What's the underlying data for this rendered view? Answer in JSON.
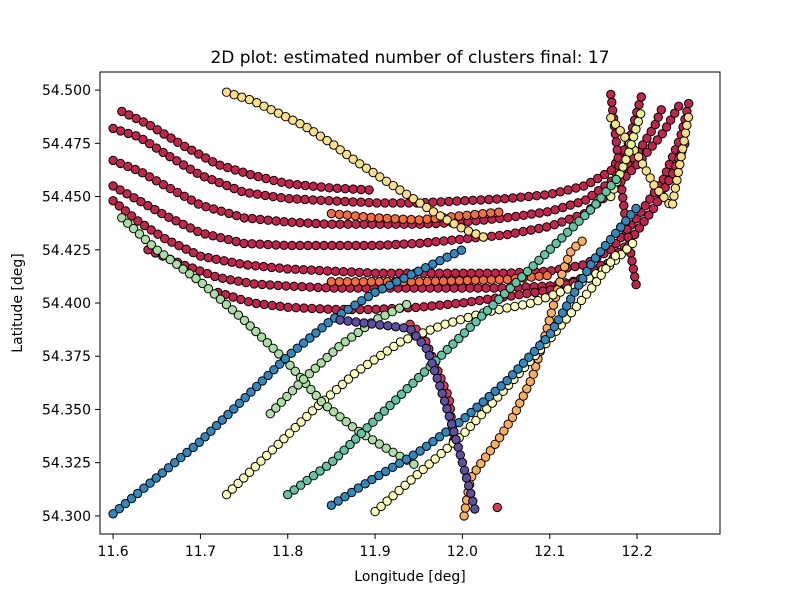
{
  "chart_data": {
    "type": "scatter",
    "title": "2D plot: estimated number of clusters final: 17",
    "xlabel": "Longitude [deg]",
    "ylabel": "Latitude [deg]",
    "xlim": [
      11.585,
      12.295
    ],
    "ylim": [
      54.2915,
      54.5085
    ],
    "xticks": [
      11.6,
      11.7,
      11.8,
      11.9,
      12.0,
      12.1,
      12.2
    ],
    "xtick_labels": [
      "11.6",
      "11.7",
      "11.8",
      "11.9",
      "12.0",
      "12.1",
      "12.2"
    ],
    "yticks": [
      54.3,
      54.325,
      54.35,
      54.375,
      54.4,
      54.425,
      54.45,
      54.475,
      54.5
    ],
    "ytick_labels": [
      "54.300",
      "54.325",
      "54.350",
      "54.375",
      "54.400",
      "54.425",
      "54.450",
      "54.475",
      "54.500"
    ],
    "grid": false,
    "legend": false,
    "marker": "circle",
    "edge_color": "#000000",
    "clusters": [
      {
        "color": "#c0264b",
        "paths": [
          [
            [
              11.6,
              54.482
            ],
            [
              11.63,
              54.478
            ],
            [
              11.66,
              54.47
            ],
            [
              11.7,
              54.46
            ],
            [
              11.75,
              54.452
            ],
            [
              11.8,
              54.449
            ],
            [
              11.85,
              54.448
            ],
            [
              11.9,
              54.447
            ],
            [
              11.95,
              54.447
            ],
            [
              12.0,
              54.448
            ],
            [
              12.05,
              54.449
            ],
            [
              12.1,
              54.451
            ],
            [
              12.14,
              54.455
            ],
            [
              12.17,
              54.462
            ],
            [
              12.19,
              54.475
            ],
            [
              12.2,
              54.49
            ],
            [
              12.205,
              54.497
            ]
          ],
          [
            [
              11.6,
              54.467
            ],
            [
              11.63,
              54.462
            ],
            [
              11.66,
              54.455
            ],
            [
              11.7,
              54.446
            ],
            [
              11.75,
              54.44
            ],
            [
              11.8,
              54.438
            ],
            [
              11.85,
              54.437
            ],
            [
              11.9,
              54.437
            ],
            [
              11.95,
              54.437
            ],
            [
              12.0,
              54.438
            ],
            [
              12.05,
              54.44
            ],
            [
              12.1,
              54.443
            ],
            [
              12.14,
              54.448
            ],
            [
              12.17,
              54.457
            ],
            [
              12.2,
              54.47
            ],
            [
              12.22,
              54.483
            ],
            [
              12.23,
              54.493
            ]
          ],
          [
            [
              11.6,
              54.455
            ],
            [
              11.63,
              54.448
            ],
            [
              11.66,
              54.441
            ],
            [
              11.7,
              54.433
            ],
            [
              11.75,
              54.428
            ],
            [
              11.8,
              54.427
            ],
            [
              11.85,
              54.427
            ],
            [
              11.9,
              54.427
            ],
            [
              11.95,
              54.428
            ],
            [
              12.0,
              54.43
            ],
            [
              12.05,
              54.432
            ],
            [
              12.1,
              54.436
            ],
            [
              12.14,
              54.442
            ],
            [
              12.17,
              54.452
            ],
            [
              12.2,
              54.465
            ],
            [
              12.23,
              54.48
            ],
            [
              12.25,
              54.494
            ]
          ],
          [
            [
              11.6,
              54.448
            ],
            [
              11.63,
              54.438
            ],
            [
              11.66,
              54.43
            ],
            [
              11.7,
              54.422
            ],
            [
              11.75,
              54.418
            ],
            [
              11.8,
              54.416
            ],
            [
              11.85,
              54.415
            ],
            [
              11.9,
              54.414
            ],
            [
              11.95,
              54.414
            ],
            [
              12.0,
              54.414
            ],
            [
              12.05,
              54.414
            ],
            [
              12.1,
              54.415
            ],
            [
              12.14,
              54.418
            ],
            [
              12.17,
              54.425
            ],
            [
              12.2,
              54.44
            ],
            [
              12.23,
              54.458
            ],
            [
              12.25,
              54.478
            ],
            [
              12.26,
              54.495
            ]
          ],
          [
            [
              11.64,
              54.425
            ],
            [
              11.68,
              54.418
            ],
            [
              11.72,
              54.412
            ],
            [
              11.76,
              54.409
            ],
            [
              11.8,
              54.408
            ],
            [
              11.85,
              54.407
            ],
            [
              11.9,
              54.407
            ],
            [
              11.95,
              54.407
            ],
            [
              12.0,
              54.407
            ],
            [
              12.05,
              54.407
            ],
            [
              12.1,
              54.408
            ],
            [
              12.15,
              54.412
            ],
            [
              12.19,
              54.428
            ],
            [
              12.22,
              54.445
            ],
            [
              12.24,
              54.46
            ],
            [
              12.255,
              54.475
            ]
          ],
          [
            [
              11.72,
              54.405
            ],
            [
              11.76,
              54.4
            ],
            [
              11.8,
              54.398
            ],
            [
              11.85,
              54.397
            ],
            [
              11.9,
              54.397
            ],
            [
              11.95,
              54.398
            ],
            [
              12.0,
              54.4
            ],
            [
              12.05,
              54.403
            ],
            [
              12.1,
              54.406
            ],
            [
              12.13,
              54.41
            ],
            [
              12.16,
              54.418
            ]
          ],
          [
            [
              12.17,
              54.498
            ],
            [
              12.175,
              54.48
            ],
            [
              12.18,
              54.462
            ],
            [
              12.185,
              54.445
            ],
            [
              12.19,
              54.43
            ],
            [
              12.195,
              54.418
            ],
            [
              12.2,
              54.406
            ]
          ],
          [
            [
              11.61,
              54.49
            ],
            [
              11.64,
              54.484
            ],
            [
              11.68,
              54.474
            ],
            [
              11.72,
              54.465
            ],
            [
              11.76,
              54.46
            ],
            [
              11.8,
              54.456
            ],
            [
              11.85,
              54.454
            ],
            [
              11.9,
              54.453
            ]
          ]
        ]
      },
      {
        "color": "#d53e4f",
        "paths": [
          [
            [
              11.94,
              54.39
            ],
            [
              11.955,
              54.385
            ],
            [
              11.97,
              54.37
            ],
            [
              11.985,
              54.355
            ],
            [
              11.99,
              54.335
            ]
          ],
          [
            [
              12.04,
              54.304
            ]
          ]
        ]
      },
      {
        "color": "#f46d43",
        "paths": [
          [
            [
              11.85,
              54.442
            ],
            [
              11.9,
              54.44
            ],
            [
              11.95,
              54.439
            ],
            [
              12.0,
              54.441
            ],
            [
              12.05,
              54.443
            ]
          ],
          [
            [
              11.85,
              54.41
            ],
            [
              11.95,
              54.41
            ],
            [
              12.05,
              54.411
            ],
            [
              12.1,
              54.413
            ]
          ]
        ]
      },
      {
        "color": "#fdae61",
        "paths": [
          [
            [
              12.002,
              54.3
            ],
            [
              12.006,
              54.31
            ],
            [
              12.01,
              54.318
            ],
            [
              12.02,
              54.324
            ],
            [
              12.04,
              54.335
            ],
            [
              12.06,
              54.348
            ],
            [
              12.08,
              54.365
            ],
            [
              12.095,
              54.385
            ],
            [
              12.105,
              54.4
            ],
            [
              12.115,
              54.415
            ],
            [
              12.125,
              54.425
            ],
            [
              12.14,
              54.43
            ]
          ]
        ]
      },
      {
        "color": "#fee08b",
        "paths": [
          [
            [
              11.73,
              54.499
            ],
            [
              11.76,
              54.495
            ],
            [
              11.79,
              54.489
            ],
            [
              11.82,
              54.483
            ],
            [
              11.85,
              54.475
            ],
            [
              11.88,
              54.466
            ],
            [
              11.91,
              54.458
            ],
            [
              11.94,
              54.45
            ],
            [
              11.97,
              54.442
            ],
            [
              12.0,
              54.435
            ],
            [
              12.03,
              54.43
            ]
          ],
          [
            [
              12.17,
              54.487
            ],
            [
              12.2,
              54.47
            ],
            [
              12.22,
              54.455
            ],
            [
              12.24,
              54.445
            ],
            [
              12.26,
              54.49
            ]
          ]
        ]
      },
      {
        "color": "#ffffbf",
        "paths": [
          [
            [
              11.73,
              54.31
            ],
            [
              11.78,
              54.33
            ],
            [
              11.83,
              54.35
            ],
            [
              11.88,
              54.368
            ],
            [
              11.93,
              54.382
            ],
            [
              11.98,
              54.39
            ],
            [
              12.03,
              54.396
            ],
            [
              12.08,
              54.4
            ],
            [
              12.13,
              54.408
            ],
            [
              12.17,
              54.418
            ],
            [
              12.2,
              54.43
            ]
          ],
          [
            [
              11.9,
              54.302
            ],
            [
              11.95,
              54.32
            ],
            [
              12.0,
              54.338
            ],
            [
              12.05,
              54.36
            ],
            [
              12.1,
              54.383
            ],
            [
              12.15,
              54.408
            ],
            [
              12.18,
              54.425
            ]
          ]
        ]
      },
      {
        "color": "#e6f598",
        "paths": [
          [
            [
              12.17,
              54.45
            ],
            [
              12.19,
              54.47
            ],
            [
              12.205,
              54.49
            ]
          ]
        ]
      },
      {
        "color": "#abdda4",
        "paths": [
          [
            [
              11.61,
              54.44
            ],
            [
              11.65,
              54.425
            ],
            [
              11.7,
              54.41
            ],
            [
              11.75,
              54.392
            ],
            [
              11.8,
              54.372
            ],
            [
              11.84,
              54.353
            ],
            [
              11.88,
              54.34
            ],
            [
              11.92,
              54.33
            ],
            [
              11.95,
              54.323
            ]
          ],
          [
            [
              11.78,
              54.348
            ],
            [
              11.82,
              54.365
            ],
            [
              11.86,
              54.38
            ],
            [
              11.9,
              54.392
            ],
            [
              11.94,
              54.4
            ]
          ]
        ]
      },
      {
        "color": "#66c2a5",
        "paths": [
          [
            [
              11.8,
              54.31
            ],
            [
              11.85,
              54.325
            ],
            [
              11.9,
              54.345
            ],
            [
              11.95,
              54.365
            ],
            [
              12.0,
              54.385
            ],
            [
              12.05,
              54.405
            ],
            [
              12.1,
              54.425
            ],
            [
              12.15,
              54.445
            ],
            [
              12.18,
              54.46
            ]
          ]
        ]
      },
      {
        "color": "#3288bd",
        "paths": [
          [
            [
              11.6,
              54.301
            ],
            [
              11.65,
              54.318
            ],
            [
              11.7,
              54.335
            ],
            [
              11.75,
              54.355
            ],
            [
              11.8,
              54.375
            ],
            [
              11.85,
              54.392
            ],
            [
              11.9,
              54.405
            ],
            [
              11.95,
              54.415
            ],
            [
              12.0,
              54.425
            ]
          ],
          [
            [
              11.85,
              54.305
            ],
            [
              11.9,
              54.318
            ],
            [
              11.95,
              54.33
            ],
            [
              12.0,
              54.345
            ],
            [
              12.05,
              54.363
            ],
            [
              12.1,
              54.385
            ],
            [
              12.15,
              54.42
            ],
            [
              12.2,
              54.445
            ]
          ]
        ]
      },
      {
        "color": "#5e4fa2",
        "paths": [
          [
            [
              11.86,
              54.392
            ],
            [
              11.9,
              54.39
            ],
            [
              11.94,
              54.388
            ],
            [
              11.96,
              54.378
            ],
            [
              11.975,
              54.36
            ],
            [
              11.99,
              54.34
            ],
            [
              12.0,
              54.325
            ],
            [
              12.01,
              54.31
            ],
            [
              12.015,
              54.302
            ]
          ]
        ]
      }
    ]
  }
}
